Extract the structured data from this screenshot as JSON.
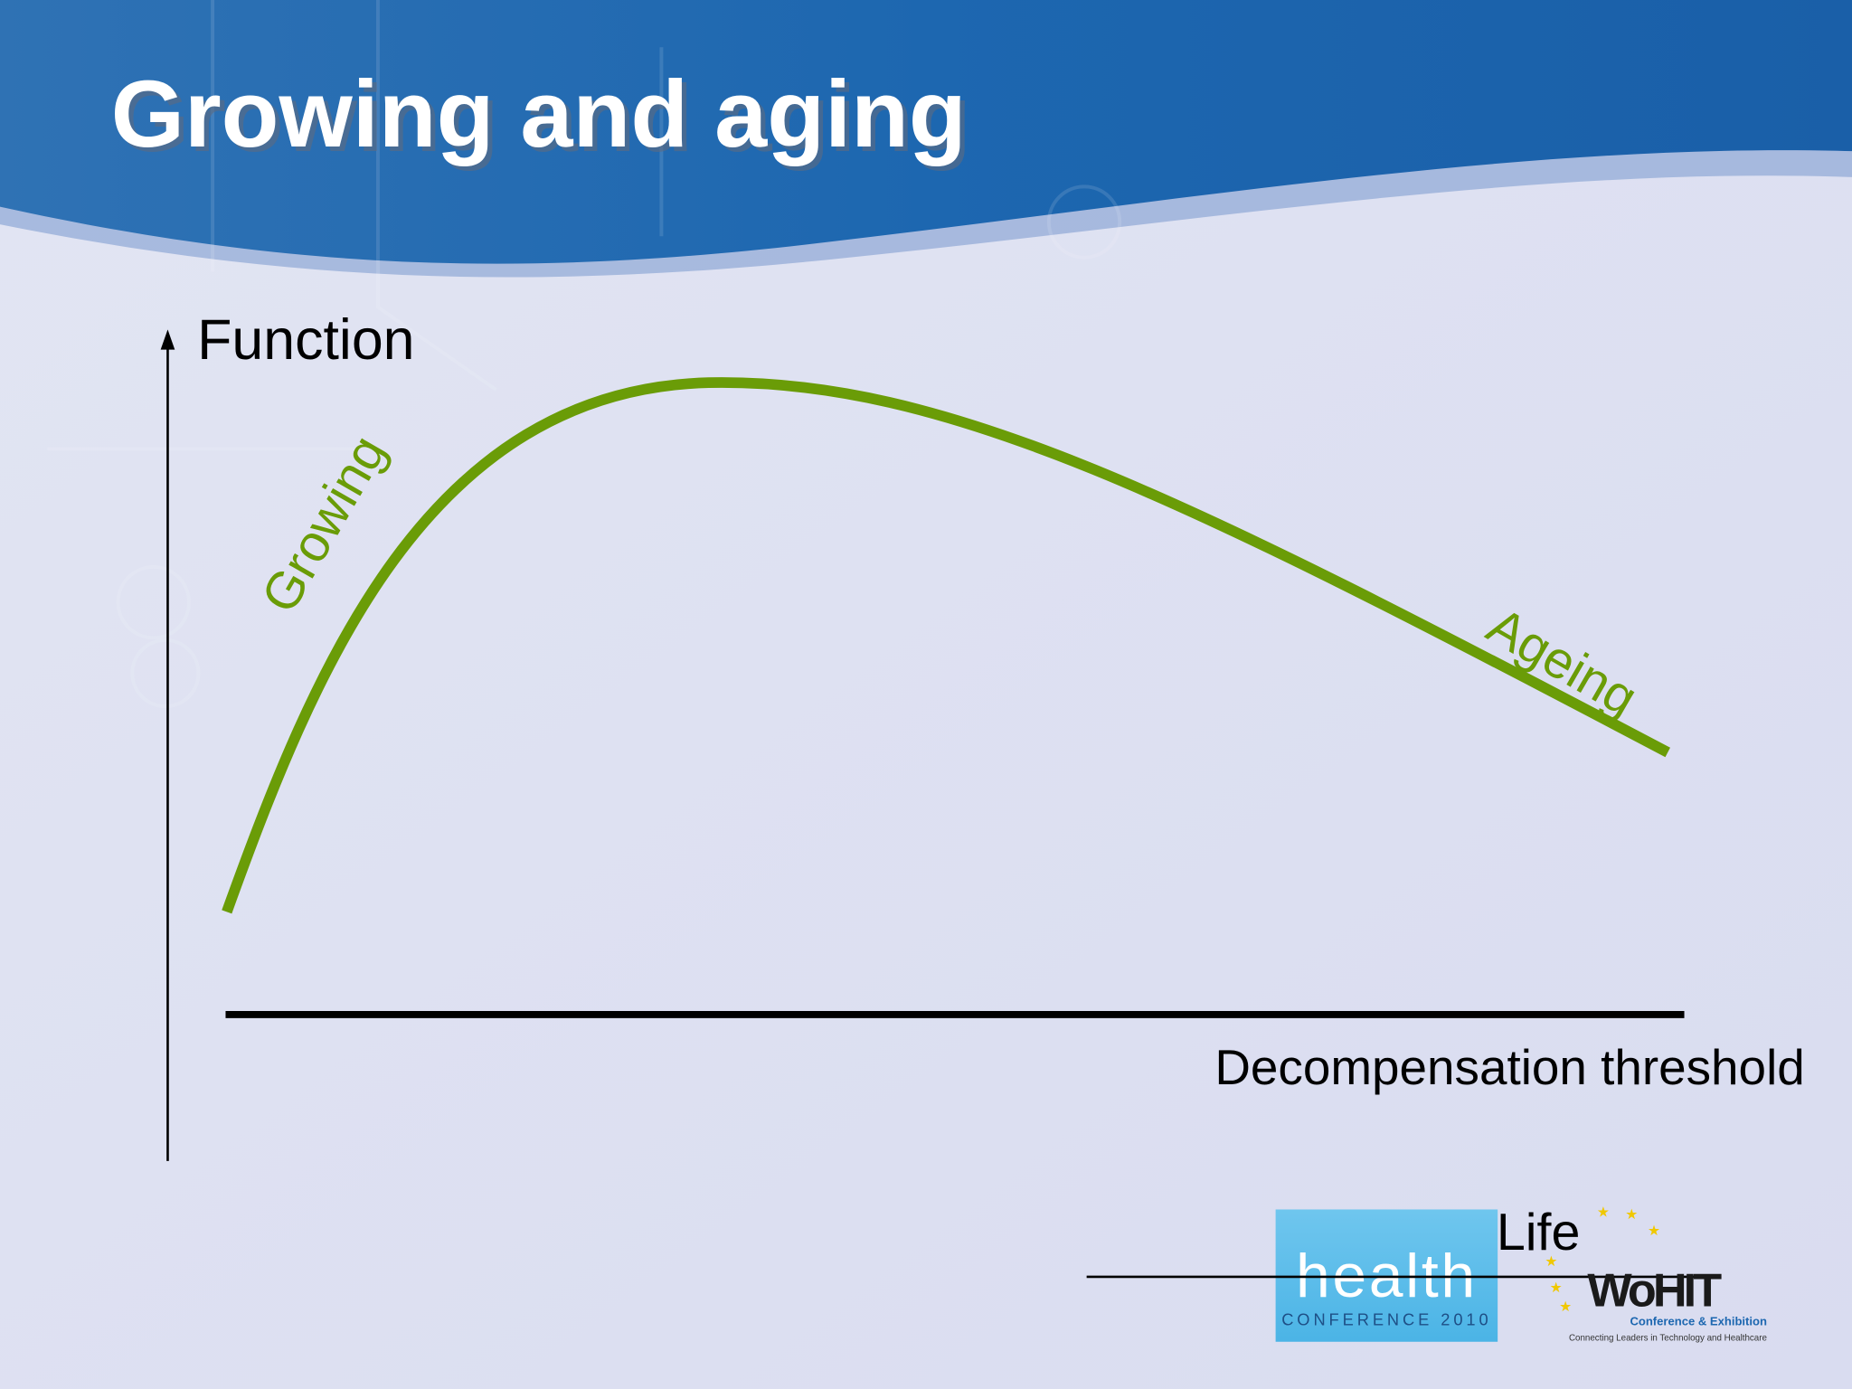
{
  "title": "Growing and aging",
  "diagram": {
    "y_axis_label": "Function",
    "threshold_label": "Decompensation threshold",
    "curve_labels": {
      "growing": "Growing",
      "ageing": "Ageing"
    }
  },
  "logo": {
    "health": "health",
    "health_sub": "CONFERENCE 2010",
    "life": "Life",
    "wohit": "WoHIT",
    "wohit_sub": "Conference & Exhibition",
    "wohit_tagline": "Connecting Leaders in Technology and Healthcare"
  }
}
